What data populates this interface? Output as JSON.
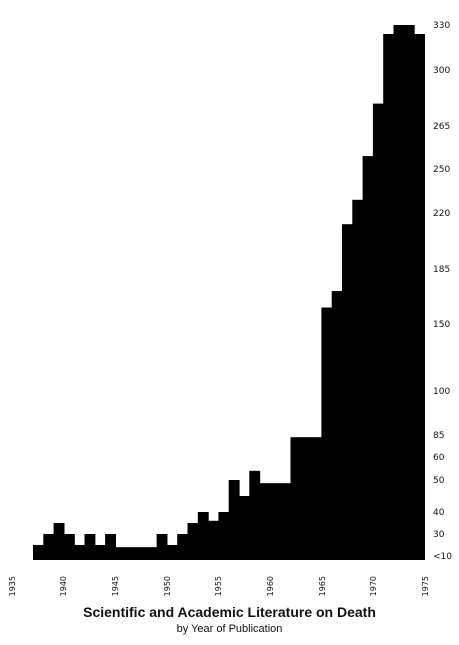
{
  "chart_data": {
    "type": "bar",
    "title": "Scientific and Academic Literature on Death",
    "subtitle": "by Year of Publication",
    "y_tick_labels": [
      "<10",
      "30",
      "40",
      "50",
      "60",
      "85",
      "100",
      "150",
      "185",
      "220",
      "250",
      "265",
      "300",
      "330"
    ],
    "x_tick_labels": [
      "1935",
      "1940",
      "1945",
      "1950",
      "1955",
      "1960",
      "1965",
      "1970",
      "1975"
    ],
    "bars": [
      {
        "year": 1937,
        "level": 0.5
      },
      {
        "year": 1938,
        "level": 1.0
      },
      {
        "year": 1939,
        "level": 1.5
      },
      {
        "year": 1940,
        "level": 1.0
      },
      {
        "year": 1941,
        "level": 0.5
      },
      {
        "year": 1942,
        "level": 1.0
      },
      {
        "year": 1943,
        "level": 0.5
      },
      {
        "year": 1944,
        "level": 1.0
      },
      {
        "year": 1945,
        "level": 0.4
      },
      {
        "year": 1946,
        "level": 0.4
      },
      {
        "year": 1947,
        "level": 0.4
      },
      {
        "year": 1948,
        "level": 0.4
      },
      {
        "year": 1949,
        "level": 1.0
      },
      {
        "year": 1950,
        "level": 0.5
      },
      {
        "year": 1951,
        "level": 1.0
      },
      {
        "year": 1952,
        "level": 1.5
      },
      {
        "year": 1953,
        "level": 2.0
      },
      {
        "year": 1954,
        "level": 1.6
      },
      {
        "year": 1955,
        "level": 2.0
      },
      {
        "year": 1956,
        "level": 3.0
      },
      {
        "year": 1957,
        "level": 2.5
      },
      {
        "year": 1958,
        "level": 3.4
      },
      {
        "year": 1959,
        "level": 2.9
      },
      {
        "year": 1960,
        "level": 2.9
      },
      {
        "year": 1961,
        "level": 2.9
      },
      {
        "year": 1962,
        "level": 4.9
      },
      {
        "year": 1963,
        "level": 4.9
      },
      {
        "year": 1964,
        "level": 4.9
      },
      {
        "year": 1965,
        "level": 7.3
      },
      {
        "year": 1966,
        "level": 7.6
      },
      {
        "year": 1967,
        "level": 8.8
      },
      {
        "year": 1968,
        "level": 9.3
      },
      {
        "year": 1969,
        "level": 10.3
      },
      {
        "year": 1970,
        "level": 11.4
      },
      {
        "year": 1971,
        "level": 12.8
      },
      {
        "year": 1972,
        "level": 13.3
      },
      {
        "year": 1973,
        "level": 13.0
      },
      {
        "year": 1974,
        "level": 12.8
      }
    ],
    "grid": false,
    "legend": "none"
  }
}
